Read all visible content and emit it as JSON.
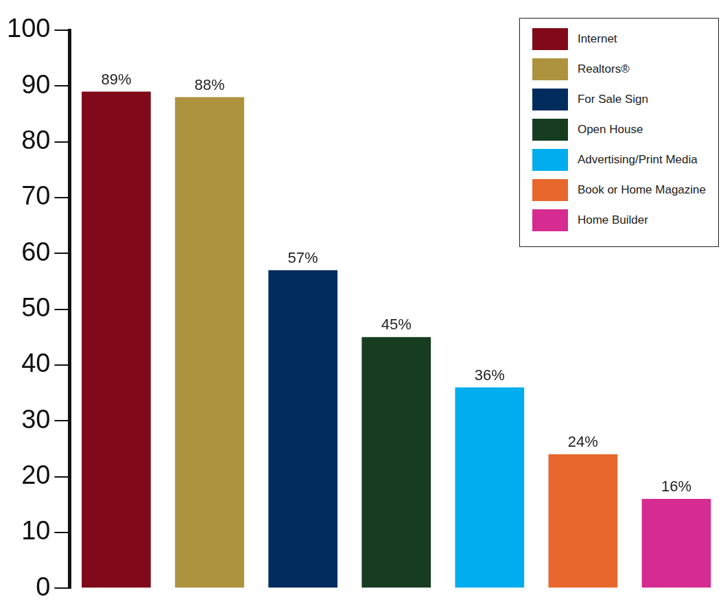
{
  "chart_data": {
    "type": "bar",
    "categories": [
      "Internet",
      "Realtors®",
      "For Sale Sign",
      "Open House",
      "Advertising/Print Media",
      "Book or Home Magazine",
      "Home Builder"
    ],
    "values": [
      89,
      88,
      57,
      45,
      36,
      24,
      16
    ],
    "value_labels": [
      "89%",
      "88%",
      "57%",
      "45%",
      "36%",
      "24%",
      "16%"
    ],
    "colors": [
      "#800a19",
      "#ad933e",
      "#002c5e",
      "#163d20",
      "#00adee",
      "#e8672d",
      "#d62b91"
    ],
    "ylim": [
      0,
      100
    ],
    "yticks": [
      0,
      10,
      20,
      30,
      40,
      50,
      60,
      70,
      80,
      90,
      100
    ],
    "grid": false,
    "legend": "upper right",
    "data_labels": true,
    "tick_labels": "y"
  }
}
